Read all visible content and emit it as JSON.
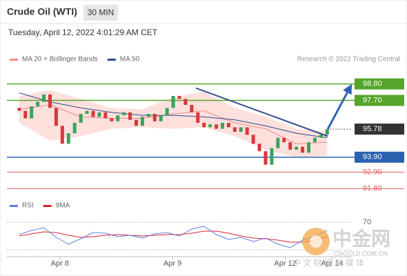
{
  "header": {
    "title": "Crude Oil (WTI)",
    "interval": "30 MIN",
    "timestamp": "Tuesday, April 12, 2022 4:01:29 AM CET"
  },
  "chart_data": {
    "type": "candlestick",
    "legend": [
      {
        "name": "MA 20 + Bollinger Bands",
        "color": "#f08a8a"
      },
      {
        "name": "MA 50",
        "color": "#2c4a8c"
      }
    ],
    "credit": "Research © 2022 Trading Central",
    "x": [
      0,
      1,
      2,
      3,
      4,
      5,
      6,
      7,
      8,
      9,
      10,
      11,
      12,
      13,
      14,
      15,
      16,
      17,
      18,
      19,
      20,
      21,
      22,
      23,
      24,
      25,
      26,
      27,
      28,
      29,
      30,
      31,
      32,
      33,
      34,
      35,
      36,
      37,
      38,
      39,
      40,
      41,
      42,
      43,
      44,
      45,
      46,
      47,
      48,
      49,
      50
    ],
    "open": [
      97.2,
      97.0,
      96.5,
      97.3,
      97.6,
      98.1,
      97.2,
      96.0,
      94.8,
      95.5,
      96.2,
      96.8,
      97.0,
      96.6,
      96.9,
      96.5,
      96.3,
      96.7,
      96.9,
      96.4,
      96.0,
      96.6,
      96.8,
      96.3,
      96.7,
      97.2,
      98.0,
      97.8,
      97.4,
      96.9,
      96.2,
      95.9,
      96.1,
      95.8,
      96.2,
      95.9,
      95.6,
      95.9,
      95.4,
      94.8,
      94.3,
      93.4,
      94.5,
      95.2,
      94.9,
      94.4,
      94.6,
      94.2,
      94.9,
      95.2,
      95.4
    ],
    "close": [
      97.0,
      96.5,
      97.3,
      97.6,
      98.1,
      97.2,
      96.0,
      94.8,
      95.5,
      96.2,
      96.8,
      97.0,
      96.6,
      96.9,
      96.5,
      96.3,
      96.7,
      96.9,
      96.4,
      96.0,
      96.6,
      96.8,
      96.3,
      96.7,
      97.2,
      98.0,
      97.8,
      97.4,
      96.9,
      96.2,
      95.9,
      96.1,
      95.8,
      96.2,
      95.9,
      95.6,
      95.9,
      95.4,
      94.8,
      94.3,
      93.4,
      94.5,
      95.2,
      94.9,
      94.4,
      94.6,
      94.2,
      94.9,
      95.2,
      95.4,
      95.78
    ],
    "up_color": "#3aa35a",
    "down_color": "#d9373d",
    "overlays": {
      "x": [
        0,
        5,
        10,
        15,
        20,
        25,
        30,
        35,
        40,
        45,
        50
      ],
      "ma20": [
        97.1,
        97.4,
        96.6,
        96.5,
        96.5,
        96.8,
        97.0,
        96.2,
        95.8,
        94.8,
        94.9
      ],
      "ma50": [
        98.2,
        97.6,
        97.2,
        96.9,
        96.7,
        96.7,
        96.6,
        96.4,
        96.0,
        95.5,
        95.2
      ],
      "upper": [
        98.0,
        98.4,
        97.8,
        97.2,
        97.1,
        97.9,
        98.3,
        97.2,
        96.6,
        95.8,
        95.6
      ],
      "lower": [
        96.2,
        95.0,
        95.3,
        95.8,
        95.9,
        95.8,
        95.9,
        95.3,
        94.4,
        93.9,
        94.0
      ],
      "band_color": "#fde0dc"
    },
    "trendline": {
      "x": [
        28.7,
        50.1
      ],
      "y": [
        98.52,
        95.3
      ],
      "color": "#3b4f8f"
    },
    "arrow": {
      "x": [
        50.1,
        54
      ],
      "y": [
        95.78,
        98.8
      ],
      "color": "#2d62b0"
    },
    "levels": [
      {
        "value": 98.8,
        "label": "98.80",
        "color": "#56a52a",
        "kind": "box"
      },
      {
        "value": 97.7,
        "label": "97.70",
        "color": "#56a52a",
        "kind": "box"
      },
      {
        "value": 95.78,
        "color": "#333333",
        "kind": "current"
      },
      {
        "value": 93.9,
        "label": "93.90",
        "color": "#2d62b0",
        "kind": "box"
      },
      {
        "value": 92.9,
        "label": "92.90",
        "color": "#e06060",
        "kind": "text"
      },
      {
        "value": 91.8,
        "label": "91.80",
        "color": "#e06060",
        "kind": "text"
      }
    ],
    "xlim": [
      -2,
      54
    ],
    "ylim": [
      91.4,
      99.8
    ],
    "xticks": [
      {
        "value": 6.6,
        "label": "Apr 8"
      },
      {
        "value": 24.9,
        "label": "Apr 9"
      },
      {
        "value": 43.2,
        "label": "Apr 12"
      },
      {
        "value": 50.8,
        "label": "Apr 14"
      }
    ],
    "rsi": {
      "legend": [
        {
          "name": "RSI",
          "color": "#5b7fd6"
        },
        {
          "name": "9MA",
          "color": "#d9232d"
        }
      ],
      "x": [
        0,
        2,
        4,
        6,
        8,
        10,
        12,
        14,
        16,
        18,
        20,
        22,
        24,
        26,
        28,
        30,
        32,
        34,
        36,
        38,
        40,
        42,
        44,
        46,
        48,
        50
      ],
      "rsi": [
        52,
        58,
        62,
        48,
        38,
        46,
        55,
        54,
        49,
        51,
        47,
        53,
        55,
        50,
        60,
        64,
        52,
        45,
        48,
        42,
        47,
        38,
        33,
        44,
        50,
        58
      ],
      "ma9": [
        50,
        53,
        56,
        55,
        51,
        48,
        49,
        51,
        52,
        51,
        50,
        51,
        52,
        52,
        54,
        57,
        57,
        54,
        50,
        47,
        46,
        44,
        41,
        41,
        44,
        49
      ],
      "ylim": [
        20,
        80
      ],
      "yticks": [
        70
      ],
      "levels": [
        70,
        30
      ]
    },
    "watermark": {
      "name": "中金网",
      "site": "CNGOLD.COM.CN",
      "slogan": "中 文 财 经 新 媒 体"
    }
  }
}
